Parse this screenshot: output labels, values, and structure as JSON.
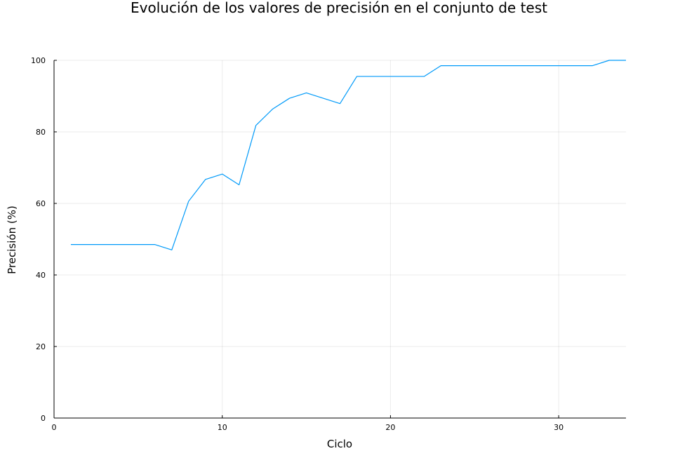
{
  "chart_data": {
    "type": "line",
    "title": "Evolución de los valores de precisión en el conjunto de test",
    "xlabel": "Ciclo",
    "ylabel": "Precisión (%)",
    "xlim": [
      0,
      34
    ],
    "ylim": [
      0,
      100
    ],
    "xticks": [
      0,
      10,
      20,
      30
    ],
    "yticks": [
      0,
      20,
      40,
      60,
      80,
      100
    ],
    "grid": true,
    "legend": "none",
    "series": [
      {
        "color": "#009af9",
        "x": [
          1,
          2,
          3,
          4,
          5,
          6,
          7,
          8,
          9,
          10,
          11,
          12,
          13,
          14,
          15,
          16,
          17,
          18,
          19,
          20,
          21,
          22,
          23,
          24,
          25,
          26,
          27,
          28,
          29,
          30,
          31,
          32,
          33,
          34
        ],
        "y": [
          48.5,
          48.5,
          48.5,
          48.5,
          48.5,
          48.5,
          47.0,
          60.6,
          66.7,
          68.2,
          65.2,
          81.8,
          86.4,
          89.4,
          90.9,
          89.4,
          87.9,
          95.5,
          95.5,
          95.5,
          95.5,
          95.5,
          98.5,
          98.5,
          98.5,
          98.5,
          98.5,
          98.5,
          98.5,
          98.5,
          98.5,
          98.5,
          100.0,
          100.0
        ]
      }
    ]
  }
}
